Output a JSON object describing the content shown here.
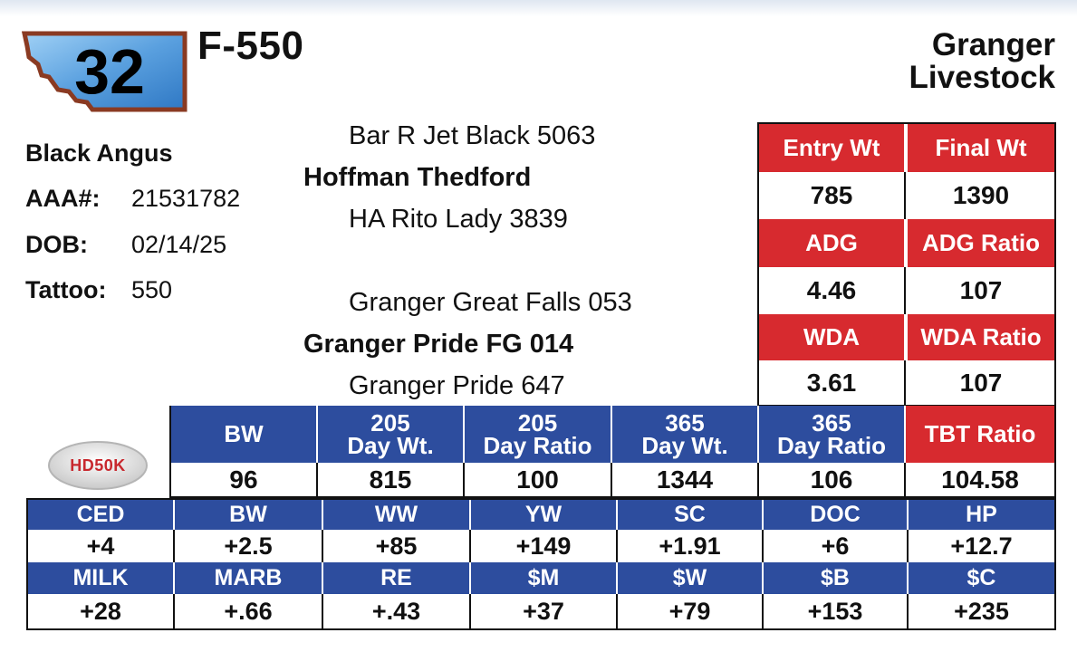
{
  "lot": {
    "number": "32",
    "name": "F-550"
  },
  "seller": {
    "line1": "Granger",
    "line2": "Livestock"
  },
  "animal": {
    "breed": "Black Angus",
    "fields": [
      {
        "label": "AAA#:",
        "value": "21531782"
      },
      {
        "label": "DOB:",
        "value": "02/14/25"
      },
      {
        "label": "Tattoo:",
        "value": "550"
      }
    ]
  },
  "pedigree": {
    "sire_sire": "Bar R Jet Black 5063",
    "sire": "Hoffman Thedford",
    "sire_dam": "HA Rito Lady 3839",
    "dam_sire": "Granger Great Falls 053",
    "dam": "Granger Pride FG 014",
    "dam_dam": "Granger Pride 647"
  },
  "performance": [
    {
      "label": "Entry Wt",
      "value": "785"
    },
    {
      "label": "Final Wt",
      "value": "1390"
    },
    {
      "label": "ADG",
      "value": "4.46"
    },
    {
      "label": "ADG Ratio",
      "value": "107"
    },
    {
      "label": "WDA",
      "value": "3.61"
    },
    {
      "label": "WDA Ratio",
      "value": "107"
    }
  ],
  "weights": [
    {
      "label_line1": "",
      "label_line2": "BW",
      "value": "96"
    },
    {
      "label_line1": "205",
      "label_line2": "Day Wt.",
      "value": "815"
    },
    {
      "label_line1": "205",
      "label_line2": "Day Ratio",
      "value": "100"
    },
    {
      "label_line1": "365",
      "label_line2": "Day Wt.",
      "value": "1344"
    },
    {
      "label_line1": "365",
      "label_line2": "Day Ratio",
      "value": "106"
    }
  ],
  "tbt": {
    "label": "TBT Ratio",
    "value": "104.58"
  },
  "hd50k_logo_text": "HD50K",
  "epds_row1": [
    {
      "label": "CED",
      "value": "+4"
    },
    {
      "label": "BW",
      "value": "+2.5"
    },
    {
      "label": "WW",
      "value": "+85"
    },
    {
      "label": "YW",
      "value": "+149"
    },
    {
      "label": "SC",
      "value": "+1.91"
    },
    {
      "label": "DOC",
      "value": "+6"
    },
    {
      "label": "HP",
      "value": "+12.7"
    }
  ],
  "epds_row2": [
    {
      "label": "MILK",
      "value": "+28"
    },
    {
      "label": "MARB",
      "value": "+.66"
    },
    {
      "label": "RE",
      "value": "+.43"
    },
    {
      "label": "$M",
      "value": "+37"
    },
    {
      "label": "$W",
      "value": "+79"
    },
    {
      "label": "$B",
      "value": "+153"
    },
    {
      "label": "$C",
      "value": "+235"
    }
  ],
  "colors": {
    "red": "#d72a2f",
    "blue": "#2d4d9e",
    "badge_fill": "#5aa0df",
    "badge_border": "#8a3a22"
  }
}
